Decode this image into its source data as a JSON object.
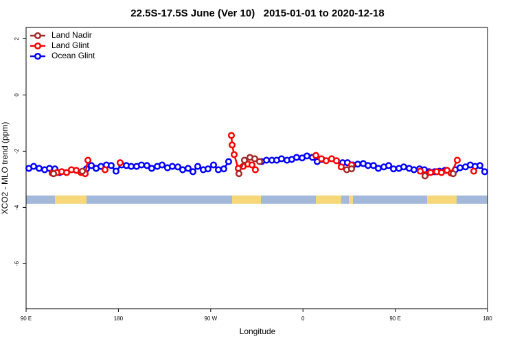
{
  "chart_data": {
    "type": "line",
    "title": "22.5S-17.5S June (Ver 10)   2015-01-01 to 2020-12-18",
    "x_label": "Longitude",
    "y_label": "XCO2 - MLO trend (ppm)",
    "xlim": [
      90,
      540
    ],
    "xticks": [
      {
        "value": 90,
        "label": "90 E"
      },
      {
        "value": 180,
        "label": "180"
      },
      {
        "value": 270,
        "label": "90 W"
      },
      {
        "value": 360,
        "label": "0"
      },
      {
        "value": 450,
        "label": "90 E"
      },
      {
        "value": 540,
        "label": "180"
      }
    ],
    "ylim": [
      -7.6,
      2.4
    ],
    "yticks": [
      2,
      0,
      -2,
      -4,
      -6
    ],
    "legend": "top-left",
    "series": [
      {
        "name": "Land Nadir",
        "color": "#a52a2a",
        "x": [
          116.8,
          null,
          144.9,
          null,
          297.6,
          302.9,
          308.3,
          313.0,
          317.7,
          null,
          402.7,
          407.4,
          null,
          479.0,
          null,
          506.5
        ],
        "values": [
          -2.8,
          null,
          -2.71,
          null,
          -2.8,
          -2.32,
          -2.22,
          -2.27,
          -2.37,
          null,
          -2.66,
          -2.63,
          null,
          -2.88,
          null,
          -2.8
        ]
      },
      {
        "name": "Land Glint",
        "color": "#ff0000",
        "x": [
          115.4,
          120.1,
          124.8,
          129.5,
          134.2,
          138.9,
          143.6,
          147.6,
          150.3,
          null,
          167.0,
          null,
          181.7,
          null,
          290.2,
          290.9,
          292.9,
          296.9,
          301.6,
          306.3,
          310.3,
          313.6,
          null,
          372.6,
          378.0,
          382.6,
          388.0,
          392.7,
          397.3,
          null,
          407.4,
          null,
          474.4,
          479.7,
          484.4,
          490.4,
          495.1,
          500.5,
          504.5,
          510.5,
          null,
          526.6
        ],
        "values": [
          -2.78,
          -2.76,
          -2.73,
          -2.76,
          -2.66,
          -2.68,
          -2.76,
          -2.8,
          -2.32,
          null,
          -2.66,
          null,
          -2.41,
          null,
          -1.44,
          -1.78,
          -2.12,
          -2.61,
          -2.54,
          -2.46,
          -2.49,
          -2.66,
          null,
          -2.15,
          -2.27,
          -2.34,
          -2.27,
          -2.34,
          -2.56,
          null,
          -2.49,
          null,
          -2.71,
          -2.83,
          -2.76,
          -2.73,
          -2.76,
          -2.68,
          -2.78,
          -2.32,
          null,
          -2.71
        ]
      },
      {
        "name": "Ocean Glint",
        "color": "#0000ff",
        "x": [
          92.7,
          97.4,
          102.7,
          108.1,
          112.8,
          118.1,
          122.8,
          null,
          148.9,
          153.6,
          158.3,
          163.0,
          168.3,
          173.0,
          177.7,
          183.1,
          187.8,
          192.5,
          197.8,
          202.5,
          207.8,
          212.5,
          217.9,
          222.6,
          227.9,
          232.6,
          238.0,
          242.7,
          248.0,
          252.7,
          257.4,
          262.8,
          267.4,
          272.8,
          277.5,
          282.8,
          287.5,
          null,
          319.7,
          324.4,
          329.7,
          334.4,
          339.1,
          344.4,
          349.1,
          353.8,
          359.2,
          363.9,
          369.2,
          373.9,
          378.6,
          null,
          398.7,
          403.4,
          408.8,
          413.4,
          418.8,
          423.5,
          428.8,
          433.5,
          438.9,
          443.6,
          448.3,
          453.6,
          458.3,
          463.6,
          468.3,
          473.7,
          478.4,
          483.1,
          488.4,
          493.1,
          498.5,
          null,
          508.5,
          513.2,
          518.5,
          523.2,
          527.9,
          532.6,
          537.3
        ],
        "values": [
          -2.61,
          -2.54,
          -2.61,
          -2.66,
          -2.61,
          -2.63,
          -2.76,
          null,
          -2.63,
          -2.51,
          -2.61,
          -2.54,
          -2.49,
          -2.51,
          -2.71,
          -2.49,
          -2.51,
          -2.54,
          -2.54,
          -2.49,
          -2.51,
          -2.61,
          -2.54,
          -2.49,
          -2.59,
          -2.54,
          -2.56,
          -2.66,
          -2.61,
          -2.73,
          -2.54,
          -2.66,
          -2.63,
          -2.49,
          -2.66,
          -2.63,
          -2.37,
          null,
          -2.37,
          -2.32,
          -2.32,
          -2.32,
          -2.27,
          -2.32,
          -2.29,
          -2.22,
          -2.24,
          -2.17,
          -2.22,
          -2.37,
          -2.29,
          null,
          -2.41,
          -2.41,
          -2.49,
          -2.46,
          -2.44,
          -2.51,
          -2.51,
          -2.61,
          -2.56,
          -2.51,
          -2.63,
          -2.61,
          -2.56,
          -2.61,
          -2.66,
          -2.63,
          -2.66,
          -2.73,
          -2.73,
          -2.71,
          -2.68,
          null,
          -2.66,
          -2.59,
          -2.56,
          -2.49,
          -2.54,
          -2.51,
          -2.73
        ]
      }
    ]
  }
}
